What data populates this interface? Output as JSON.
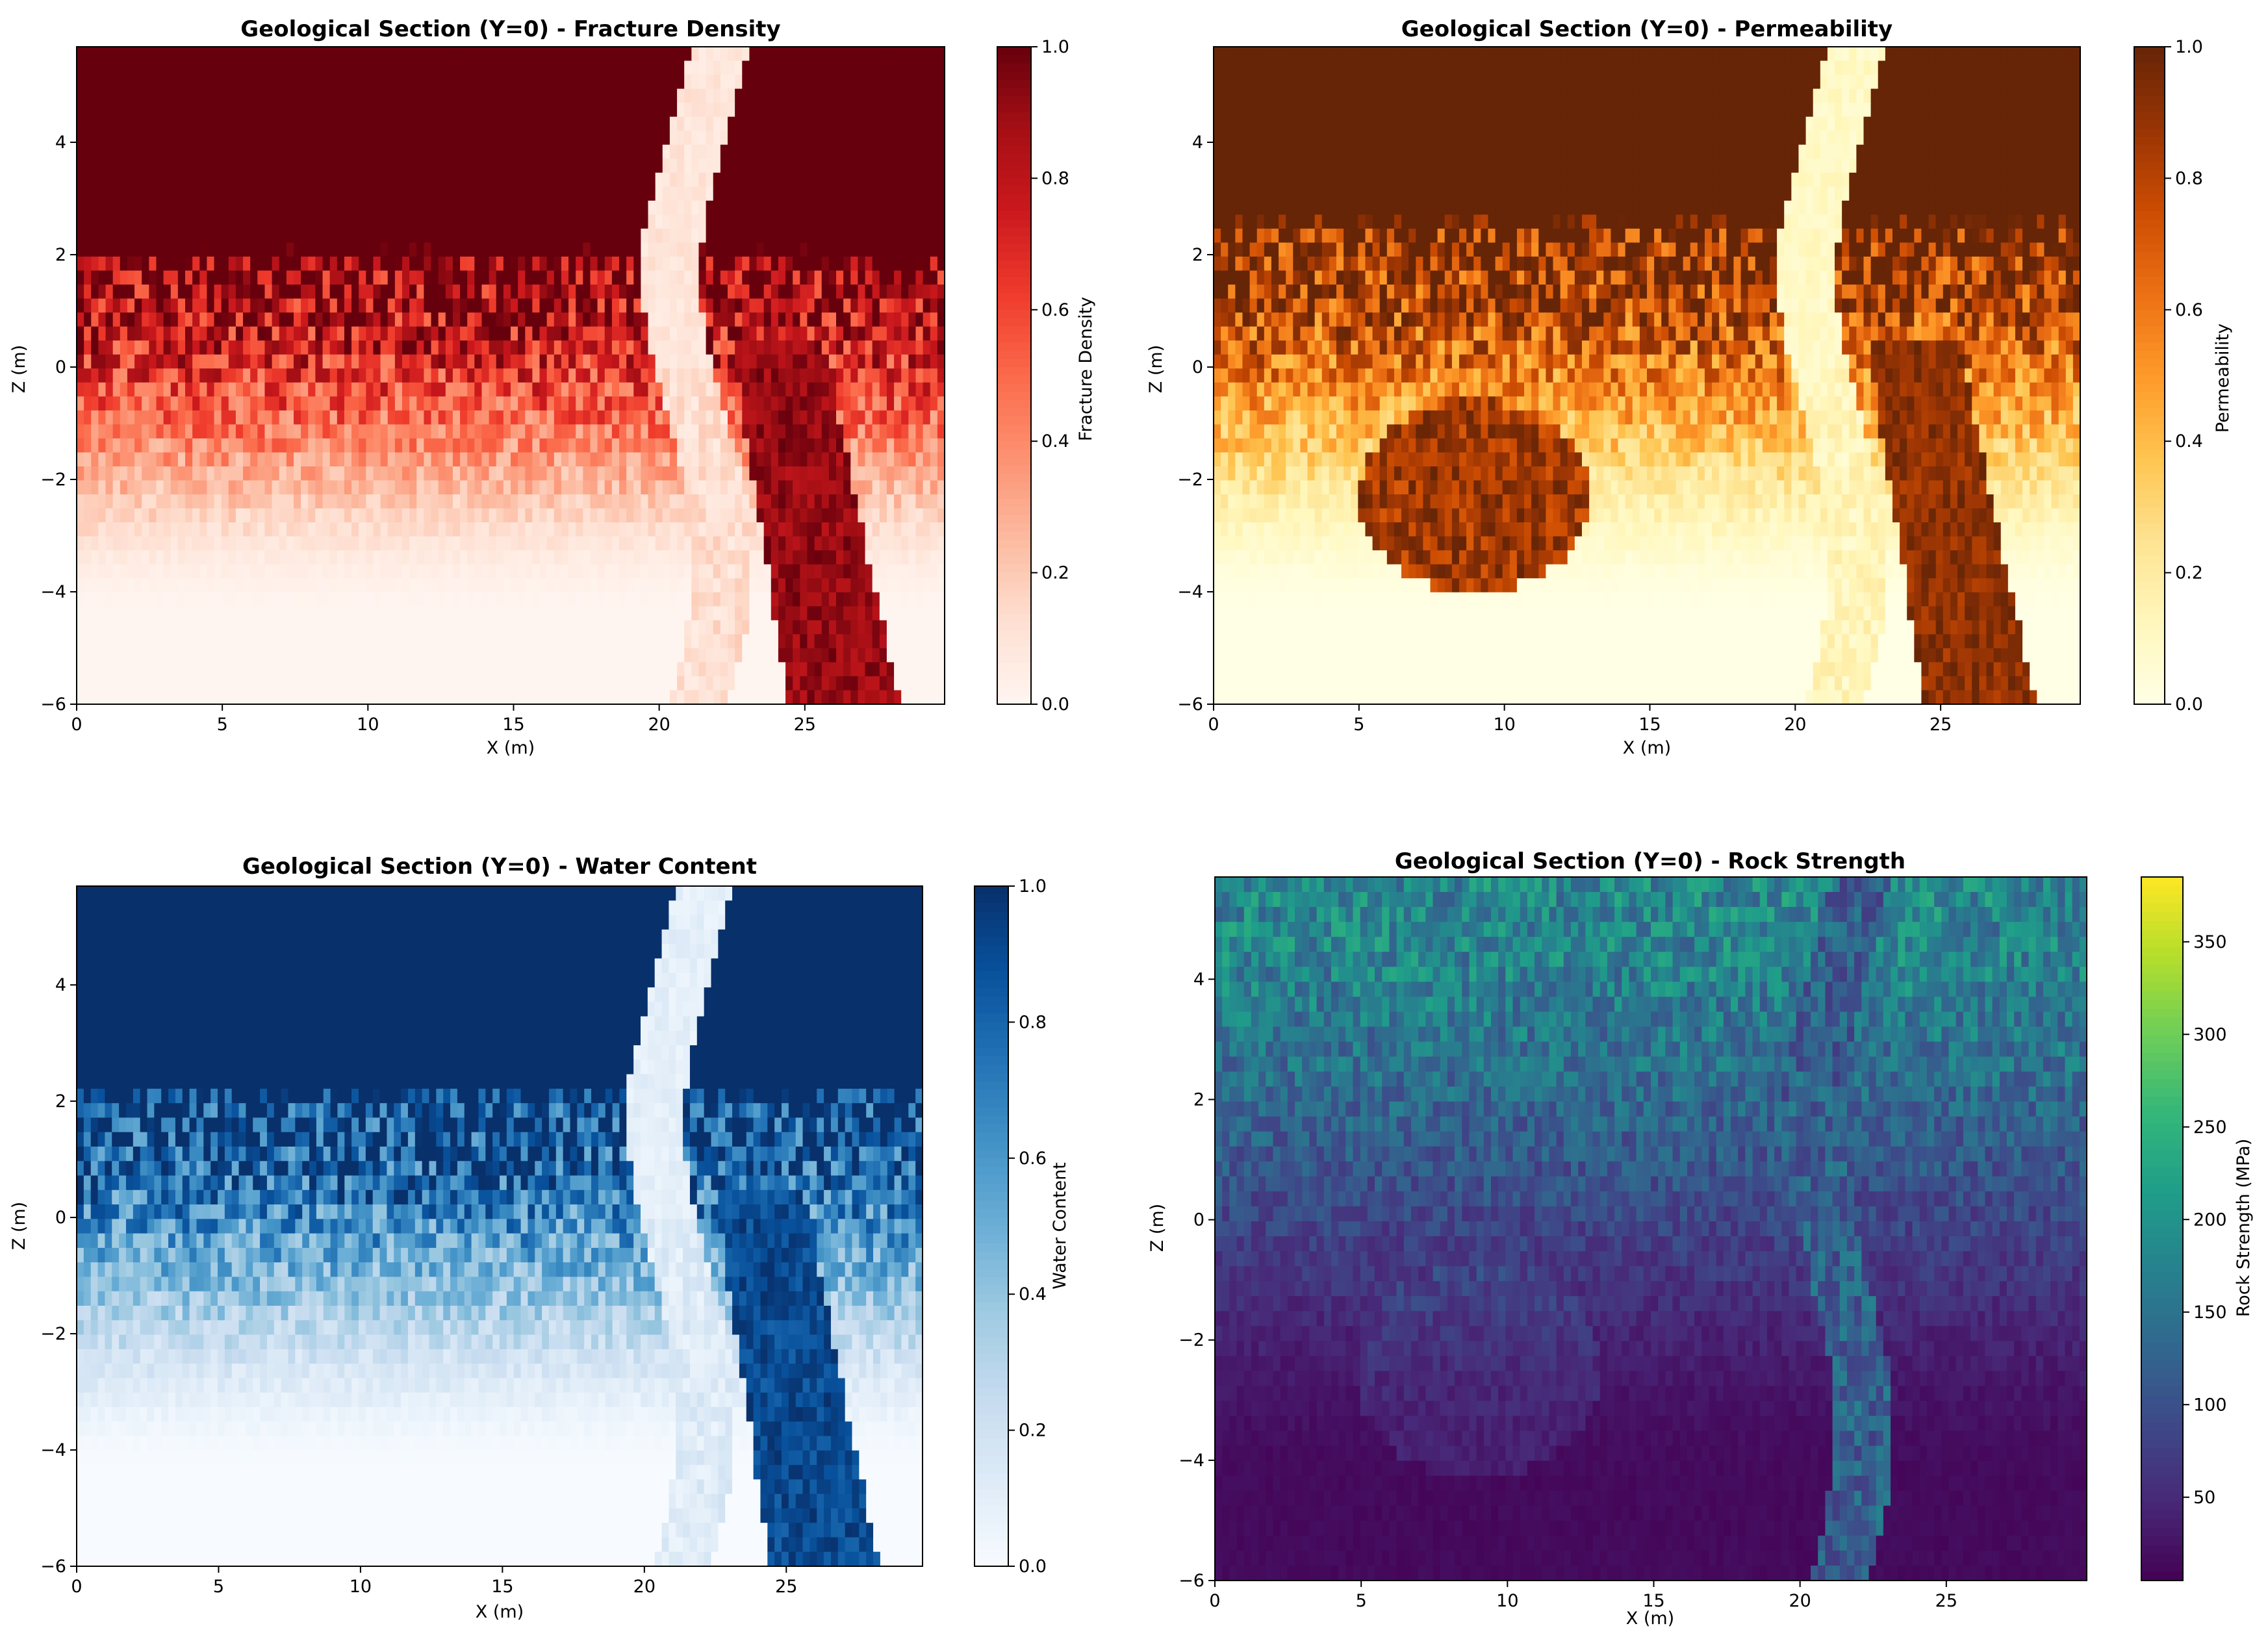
{
  "figure": {
    "panels": [
      {
        "key": "fd",
        "title": "Geological Section (Y=0) - Fracture Density",
        "xlabel": "X (m)",
        "ylabel": "Z (m)",
        "colorbar_label": "Fracture Density"
      },
      {
        "key": "perm",
        "title": "Geological Section (Y=0) - Permeability",
        "xlabel": "X (m)",
        "ylabel": "Z (m)",
        "colorbar_label": "Permeability"
      },
      {
        "key": "wc",
        "title": "Geological Section (Y=0) - Water Content",
        "xlabel": "X (m)",
        "ylabel": "Z (m)",
        "colorbar_label": "Water Content"
      },
      {
        "key": "rs",
        "title": "Geological Section (Y=0) - Rock Strength",
        "xlabel": "X (m)",
        "ylabel": "Z (m)",
        "colorbar_label": "Rock Strength (MPa)"
      }
    ]
  },
  "chart_data": [
    {
      "type": "heatmap",
      "title": "Geological Section (Y=0) - Fracture Density",
      "xlabel": "X (m)",
      "ylabel": "Z (m)",
      "xlim": [
        0,
        29.8
      ],
      "ylim": [
        -6,
        5.7
      ],
      "xticks": [
        0,
        5,
        10,
        15,
        20,
        25
      ],
      "yticks": [
        -6,
        -4,
        -2,
        0,
        2,
        4
      ],
      "colorbar": {
        "label": "Fracture Density",
        "range": [
          0,
          1
        ],
        "ticks": [
          0.0,
          0.2,
          0.4,
          0.6,
          0.8,
          1.0
        ],
        "colormap": "Reds"
      },
      "grid": {
        "nx": 120,
        "nz": 47,
        "dx": 0.25,
        "dz": 0.25
      },
      "features": {
        "saturated_top_above_z": 1.0,
        "gradient_to_low_below_z": -3.0,
        "vertical_fault_low_zone": {
          "x_center_range": [
            20.3,
            22.3
          ],
          "value": 0.1
        },
        "inclined_high_band": {
          "x_at_top_z": 23.5,
          "x_at_bottom_z": 27.5,
          "z_range": [
            -6,
            0
          ],
          "value": 0.95
        }
      }
    },
    {
      "type": "heatmap",
      "title": "Geological Section (Y=0) - Permeability",
      "xlabel": "X (m)",
      "ylabel": "Z (m)",
      "xlim": [
        0,
        29.8
      ],
      "ylim": [
        -6,
        5.7
      ],
      "xticks": [
        0,
        5,
        10,
        15,
        20,
        25
      ],
      "yticks": [
        -6,
        -4,
        -2,
        0,
        2,
        4
      ],
      "colorbar": {
        "label": "Permeability",
        "range": [
          0,
          1
        ],
        "ticks": [
          0.0,
          0.2,
          0.4,
          0.6,
          0.8,
          1.0
        ],
        "colormap": "YlOrBr"
      },
      "grid": {
        "nx": 120,
        "nz": 47,
        "dx": 0.25,
        "dz": 0.25
      },
      "features": {
        "saturated_top_above_z": 1.6,
        "gradient_to_low_below_z": -4.0,
        "vertical_fault_low_zone": {
          "x_center_range": [
            20.3,
            22.3
          ],
          "value": 0.05
        },
        "high_lens": {
          "center": [
            9.0,
            -2.3
          ],
          "radii": [
            4.0,
            1.7
          ],
          "value": 0.9
        },
        "inclined_high_band": {
          "x_at_top_z": 23.5,
          "x_at_bottom_z": 27.5,
          "z_range": [
            -6,
            0
          ],
          "value": 0.95
        }
      }
    },
    {
      "type": "heatmap",
      "title": "Geological Section (Y=0) - Water Content",
      "xlabel": "X (m)",
      "ylabel": "Z (m)",
      "xlim": [
        0,
        29.8
      ],
      "ylim": [
        -6,
        5.7
      ],
      "xticks": [
        0,
        5,
        10,
        15,
        20,
        25
      ],
      "yticks": [
        -6,
        -4,
        -2,
        0,
        2,
        4
      ],
      "colorbar": {
        "label": "Water Content",
        "range": [
          0,
          1
        ],
        "ticks": [
          0.0,
          0.2,
          0.4,
          0.6,
          0.8,
          1.0
        ],
        "colormap": "Blues"
      },
      "grid": {
        "nx": 120,
        "nz": 47,
        "dx": 0.25,
        "dz": 0.25
      },
      "features": {
        "saturated_top_above_z": 1.2,
        "gradient_to_low_below_z": -3.0,
        "vertical_fault_low_zone": {
          "x_center_range": [
            20.3,
            22.3
          ],
          "value": 0.1
        },
        "inclined_high_band": {
          "x_at_top_z": 23.5,
          "x_at_bottom_z": 27.5,
          "z_range": [
            -6,
            0
          ],
          "value": 0.95
        }
      }
    },
    {
      "type": "heatmap",
      "title": "Geological Section (Y=0) - Rock Strength",
      "xlabel": "X (m)",
      "ylabel": "Z (m)",
      "xlim": [
        0,
        29.8
      ],
      "ylim": [
        -6,
        5.7
      ],
      "xticks": [
        0,
        5,
        10,
        15,
        20,
        25
      ],
      "yticks": [
        -6,
        -4,
        -2,
        0,
        2,
        4
      ],
      "colorbar": {
        "label": "Rock Strength (MPa)",
        "range": [
          5,
          385
        ],
        "ticks": [
          50,
          100,
          150,
          200,
          250,
          300,
          350
        ],
        "colormap": "viridis"
      },
      "grid": {
        "nx": 120,
        "nz": 47,
        "dx": 0.25,
        "dz": 0.25
      },
      "features": {
        "top_strength_mpa": 180,
        "mid_strength_mpa": 80,
        "bottom_strength_mpa": 15,
        "fault_zone_strength_mpa": 130,
        "vertical_fault_zone": {
          "x_center_range": [
            20.3,
            22.3
          ]
        }
      }
    }
  ]
}
